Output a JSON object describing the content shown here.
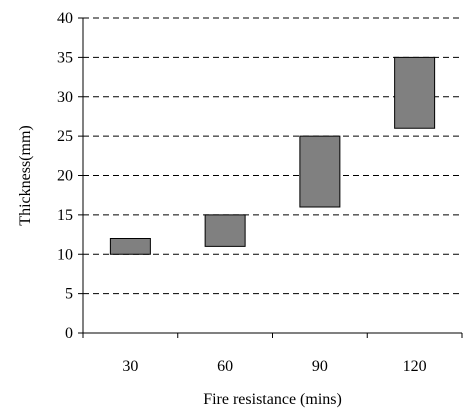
{
  "chart_data": {
    "type": "bar",
    "subtype": "floating-range",
    "title": "",
    "xlabel": "Fire resistance (mins)",
    "ylabel": "Thickness(mm)",
    "categories": [
      "30",
      "60",
      "90",
      "120"
    ],
    "series": [
      {
        "ranges": [
          [
            10,
            12
          ],
          [
            11,
            15
          ],
          [
            16,
            25
          ],
          [
            26,
            35
          ]
        ]
      }
    ],
    "ylim": [
      0,
      40
    ],
    "yticks": [
      0,
      5,
      10,
      15,
      20,
      25,
      30,
      35,
      40
    ],
    "grid": "horizontal dashed",
    "legend": "none",
    "colors": {
      "bar_fill": "#808080",
      "bar_stroke": "#000000",
      "grid": "#000000",
      "axis": "#000000"
    }
  }
}
